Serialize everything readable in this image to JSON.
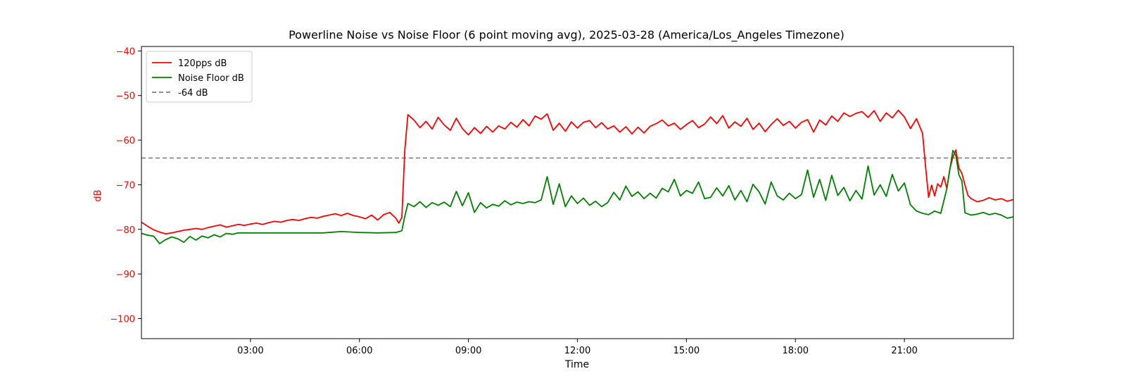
{
  "chart_data": {
    "type": "line",
    "title": "Powerline Noise vs Noise Floor (6 point moving avg), 2025-03-28 (America/Los_Angeles Timezone)",
    "xlabel": "Time",
    "ylabel": "dB",
    "xlim": [
      "00:00",
      "24:00"
    ],
    "ylim": [
      -104.5,
      -39.0
    ],
    "x_ticks": [
      "03:00",
      "06:00",
      "09:00",
      "12:00",
      "15:00",
      "18:00",
      "21:00"
    ],
    "y_ticks": [
      -40,
      -50,
      -60,
      -70,
      -80,
      -90,
      -100
    ],
    "grid": false,
    "legend_position": "upper-left",
    "colors": {
      "series_120pps": "#ff0000",
      "series_noise_floor": "#008000",
      "reference_line": "#808080",
      "y_axis_text": "#ff0000",
      "axis_text": "#000000"
    },
    "series": [
      {
        "name": "120pps dB",
        "color": "#ff0000",
        "points": [
          [
            "00:00",
            -78.4
          ],
          [
            "00:10",
            -79.3
          ],
          [
            "00:20",
            -80.1
          ],
          [
            "00:30",
            -80.6
          ],
          [
            "00:40",
            -81.0
          ],
          [
            "00:50",
            -80.8
          ],
          [
            "01:00",
            -80.5
          ],
          [
            "01:10",
            -80.2
          ],
          [
            "01:20",
            -80.0
          ],
          [
            "01:30",
            -79.8
          ],
          [
            "01:40",
            -80.0
          ],
          [
            "01:50",
            -79.6
          ],
          [
            "02:00",
            -79.3
          ],
          [
            "02:10",
            -79.0
          ],
          [
            "02:20",
            -79.5
          ],
          [
            "02:30",
            -79.2
          ],
          [
            "02:40",
            -78.9
          ],
          [
            "02:50",
            -79.1
          ],
          [
            "03:00",
            -78.8
          ],
          [
            "03:10",
            -78.6
          ],
          [
            "03:20",
            -78.9
          ],
          [
            "03:30",
            -78.5
          ],
          [
            "03:40",
            -78.2
          ],
          [
            "03:50",
            -78.4
          ],
          [
            "04:00",
            -78.0
          ],
          [
            "04:10",
            -77.8
          ],
          [
            "04:20",
            -78.0
          ],
          [
            "04:30",
            -77.6
          ],
          [
            "04:40",
            -77.3
          ],
          [
            "04:50",
            -77.5
          ],
          [
            "05:00",
            -77.1
          ],
          [
            "05:10",
            -76.8
          ],
          [
            "05:20",
            -76.5
          ],
          [
            "05:30",
            -76.9
          ],
          [
            "05:40",
            -76.4
          ],
          [
            "05:50",
            -76.9
          ],
          [
            "06:00",
            -77.2
          ],
          [
            "06:10",
            -77.6
          ],
          [
            "06:20",
            -76.8
          ],
          [
            "06:30",
            -77.9
          ],
          [
            "06:40",
            -76.7
          ],
          [
            "06:50",
            -76.2
          ],
          [
            "07:00",
            -77.5
          ],
          [
            "07:05",
            -78.6
          ],
          [
            "07:10",
            -77.3
          ],
          [
            "07:15",
            -62.0
          ],
          [
            "07:20",
            -54.3
          ],
          [
            "07:30",
            -55.5
          ],
          [
            "07:40",
            -57.2
          ],
          [
            "07:50",
            -55.8
          ],
          [
            "08:00",
            -57.5
          ],
          [
            "08:10",
            -54.9
          ],
          [
            "08:20",
            -56.6
          ],
          [
            "08:30",
            -57.8
          ],
          [
            "08:40",
            -55.1
          ],
          [
            "08:50",
            -57.4
          ],
          [
            "09:00",
            -58.8
          ],
          [
            "09:10",
            -57.2
          ],
          [
            "09:20",
            -58.5
          ],
          [
            "09:30",
            -56.9
          ],
          [
            "09:40",
            -58.2
          ],
          [
            "09:50",
            -56.8
          ],
          [
            "10:00",
            -57.5
          ],
          [
            "10:10",
            -56.0
          ],
          [
            "10:20",
            -57.1
          ],
          [
            "10:30",
            -55.4
          ],
          [
            "10:40",
            -56.8
          ],
          [
            "10:50",
            -54.6
          ],
          [
            "11:00",
            -55.3
          ],
          [
            "11:10",
            -54.1
          ],
          [
            "11:20",
            -57.8
          ],
          [
            "11:30",
            -56.2
          ],
          [
            "11:40",
            -58.0
          ],
          [
            "11:50",
            -55.9
          ],
          [
            "12:00",
            -57.3
          ],
          [
            "12:10",
            -56.0
          ],
          [
            "12:20",
            -55.6
          ],
          [
            "12:30",
            -57.2
          ],
          [
            "12:40",
            -56.1
          ],
          [
            "12:50",
            -57.5
          ],
          [
            "13:00",
            -56.8
          ],
          [
            "13:10",
            -58.2
          ],
          [
            "13:20",
            -57.0
          ],
          [
            "13:30",
            -58.6
          ],
          [
            "13:40",
            -57.1
          ],
          [
            "13:50",
            -58.4
          ],
          [
            "14:00",
            -56.9
          ],
          [
            "14:10",
            -56.3
          ],
          [
            "14:20",
            -55.5
          ],
          [
            "14:30",
            -56.8
          ],
          [
            "14:40",
            -56.2
          ],
          [
            "14:50",
            -57.6
          ],
          [
            "15:00",
            -56.5
          ],
          [
            "15:10",
            -55.6
          ],
          [
            "15:20",
            -57.2
          ],
          [
            "15:30",
            -56.4
          ],
          [
            "15:40",
            -54.8
          ],
          [
            "15:50",
            -56.3
          ],
          [
            "16:00",
            -54.5
          ],
          [
            "16:10",
            -57.3
          ],
          [
            "16:20",
            -55.9
          ],
          [
            "16:30",
            -56.9
          ],
          [
            "16:40",
            -55.1
          ],
          [
            "16:50",
            -57.6
          ],
          [
            "17:00",
            -56.2
          ],
          [
            "17:10",
            -58.1
          ],
          [
            "17:20",
            -56.5
          ],
          [
            "17:30",
            -55.2
          ],
          [
            "17:40",
            -56.7
          ],
          [
            "17:50",
            -55.8
          ],
          [
            "18:00",
            -57.3
          ],
          [
            "18:10",
            -56.0
          ],
          [
            "18:20",
            -55.4
          ],
          [
            "18:30",
            -58.2
          ],
          [
            "18:40",
            -55.5
          ],
          [
            "18:50",
            -56.6
          ],
          [
            "19:00",
            -54.6
          ],
          [
            "19:10",
            -55.8
          ],
          [
            "19:20",
            -53.9
          ],
          [
            "19:30",
            -54.7
          ],
          [
            "19:40",
            -54.0
          ],
          [
            "19:50",
            -53.6
          ],
          [
            "20:00",
            -54.9
          ],
          [
            "20:10",
            -53.4
          ],
          [
            "20:20",
            -55.8
          ],
          [
            "20:30",
            -53.9
          ],
          [
            "20:40",
            -55.0
          ],
          [
            "20:50",
            -53.3
          ],
          [
            "21:00",
            -54.8
          ],
          [
            "21:10",
            -57.4
          ],
          [
            "21:20",
            -55.2
          ],
          [
            "21:30",
            -58.5
          ],
          [
            "21:35",
            -66.0
          ],
          [
            "21:40",
            -72.8
          ],
          [
            "21:45",
            -70.1
          ],
          [
            "21:50",
            -72.5
          ],
          [
            "21:55",
            -69.8
          ],
          [
            "22:00",
            -70.5
          ],
          [
            "22:05",
            -68.2
          ],
          [
            "22:10",
            -70.8
          ],
          [
            "22:15",
            -66.5
          ],
          [
            "22:20",
            -63.8
          ],
          [
            "22:25",
            -62.2
          ],
          [
            "22:30",
            -66.3
          ],
          [
            "22:35",
            -67.5
          ],
          [
            "22:40",
            -70.1
          ],
          [
            "22:45",
            -72.4
          ],
          [
            "22:50",
            -73.1
          ],
          [
            "23:00",
            -73.8
          ],
          [
            "23:10",
            -73.5
          ],
          [
            "23:20",
            -72.9
          ],
          [
            "23:30",
            -73.4
          ],
          [
            "23:40",
            -73.1
          ],
          [
            "23:50",
            -73.7
          ],
          [
            "24:00",
            -73.3
          ]
        ]
      },
      {
        "name": "Noise Floor dB",
        "color": "#008000",
        "points": [
          [
            "00:00",
            -80.9
          ],
          [
            "00:10",
            -81.3
          ],
          [
            "00:20",
            -81.5
          ],
          [
            "00:30",
            -83.2
          ],
          [
            "00:40",
            -82.3
          ],
          [
            "00:50",
            -81.7
          ],
          [
            "01:00",
            -82.1
          ],
          [
            "01:10",
            -82.9
          ],
          [
            "01:20",
            -81.6
          ],
          [
            "01:30",
            -82.4
          ],
          [
            "01:40",
            -81.5
          ],
          [
            "01:50",
            -81.9
          ],
          [
            "02:00",
            -81.2
          ],
          [
            "02:10",
            -81.7
          ],
          [
            "02:20",
            -80.9
          ],
          [
            "02:30",
            -81.1
          ],
          [
            "02:40",
            -80.8
          ],
          [
            "02:50",
            -80.8
          ],
          [
            "03:00",
            -80.8
          ],
          [
            "03:30",
            -80.8
          ],
          [
            "04:00",
            -80.8
          ],
          [
            "04:30",
            -80.8
          ],
          [
            "05:00",
            -80.8
          ],
          [
            "05:30",
            -80.5
          ],
          [
            "06:00",
            -80.7
          ],
          [
            "06:30",
            -80.8
          ],
          [
            "07:00",
            -80.7
          ],
          [
            "07:10",
            -80.3
          ],
          [
            "07:15",
            -77.0
          ],
          [
            "07:20",
            -74.2
          ],
          [
            "07:30",
            -74.9
          ],
          [
            "07:40",
            -73.8
          ],
          [
            "07:50",
            -75.1
          ],
          [
            "08:00",
            -74.0
          ],
          [
            "08:10",
            -74.6
          ],
          [
            "08:20",
            -73.9
          ],
          [
            "08:30",
            -74.9
          ],
          [
            "08:40",
            -71.5
          ],
          [
            "08:50",
            -74.7
          ],
          [
            "09:00",
            -71.8
          ],
          [
            "09:10",
            -76.2
          ],
          [
            "09:20",
            -74.0
          ],
          [
            "09:30",
            -75.2
          ],
          [
            "09:40",
            -74.4
          ],
          [
            "09:50",
            -74.8
          ],
          [
            "10:00",
            -73.6
          ],
          [
            "10:10",
            -74.5
          ],
          [
            "10:20",
            -73.9
          ],
          [
            "10:30",
            -74.2
          ],
          [
            "10:40",
            -73.8
          ],
          [
            "10:50",
            -74.0
          ],
          [
            "11:00",
            -73.4
          ],
          [
            "11:10",
            -68.2
          ],
          [
            "11:20",
            -74.4
          ],
          [
            "11:30",
            -69.8
          ],
          [
            "11:40",
            -74.9
          ],
          [
            "11:50",
            -72.5
          ],
          [
            "12:00",
            -74.2
          ],
          [
            "12:10",
            -73.0
          ],
          [
            "12:20",
            -74.6
          ],
          [
            "12:30",
            -73.7
          ],
          [
            "12:40",
            -74.9
          ],
          [
            "12:50",
            -74.0
          ],
          [
            "13:00",
            -71.7
          ],
          [
            "13:10",
            -73.4
          ],
          [
            "13:20",
            -70.3
          ],
          [
            "13:30",
            -72.6
          ],
          [
            "13:40",
            -71.6
          ],
          [
            "13:50",
            -73.1
          ],
          [
            "14:00",
            -71.9
          ],
          [
            "14:10",
            -73.0
          ],
          [
            "14:20",
            -70.8
          ],
          [
            "14:30",
            -71.6
          ],
          [
            "14:40",
            -68.8
          ],
          [
            "14:50",
            -72.5
          ],
          [
            "15:00",
            -71.3
          ],
          [
            "15:10",
            -71.9
          ],
          [
            "15:20",
            -69.4
          ],
          [
            "15:30",
            -73.1
          ],
          [
            "15:40",
            -72.8
          ],
          [
            "15:50",
            -70.7
          ],
          [
            "16:00",
            -72.5
          ],
          [
            "16:10",
            -70.2
          ],
          [
            "16:20",
            -73.4
          ],
          [
            "16:30",
            -71.3
          ],
          [
            "16:40",
            -73.8
          ],
          [
            "16:50",
            -69.9
          ],
          [
            "17:00",
            -71.6
          ],
          [
            "17:10",
            -74.3
          ],
          [
            "17:20",
            -69.4
          ],
          [
            "17:30",
            -72.5
          ],
          [
            "17:40",
            -73.4
          ],
          [
            "17:50",
            -71.9
          ],
          [
            "18:00",
            -73.1
          ],
          [
            "18:10",
            -72.2
          ],
          [
            "18:20",
            -66.7
          ],
          [
            "18:30",
            -72.8
          ],
          [
            "18:40",
            -68.8
          ],
          [
            "18:50",
            -73.5
          ],
          [
            "19:00",
            -67.9
          ],
          [
            "19:10",
            -72.4
          ],
          [
            "19:20",
            -70.6
          ],
          [
            "19:30",
            -73.6
          ],
          [
            "19:40",
            -71.3
          ],
          [
            "19:50",
            -73.2
          ],
          [
            "20:00",
            -65.8
          ],
          [
            "20:10",
            -72.3
          ],
          [
            "20:20",
            -70.0
          ],
          [
            "20:30",
            -72.6
          ],
          [
            "20:40",
            -67.7
          ],
          [
            "20:50",
            -71.4
          ],
          [
            "21:00",
            -69.6
          ],
          [
            "21:10",
            -74.5
          ],
          [
            "21:20",
            -75.9
          ],
          [
            "21:30",
            -76.4
          ],
          [
            "21:40",
            -76.7
          ],
          [
            "21:50",
            -75.9
          ],
          [
            "22:00",
            -76.4
          ],
          [
            "22:10",
            -70.9
          ],
          [
            "22:20",
            -62.3
          ],
          [
            "22:25",
            -63.5
          ],
          [
            "22:30",
            -67.8
          ],
          [
            "22:35",
            -69.2
          ],
          [
            "22:40",
            -76.3
          ],
          [
            "22:50",
            -76.8
          ],
          [
            "23:00",
            -76.6
          ],
          [
            "23:10",
            -76.2
          ],
          [
            "23:20",
            -76.7
          ],
          [
            "23:30",
            -76.4
          ],
          [
            "23:40",
            -76.8
          ],
          [
            "23:50",
            -77.5
          ],
          [
            "24:00",
            -77.2
          ]
        ]
      }
    ],
    "reference_lines": [
      {
        "name": "-64 dB",
        "y": -64,
        "color": "#808080",
        "style": "dashed"
      }
    ]
  }
}
